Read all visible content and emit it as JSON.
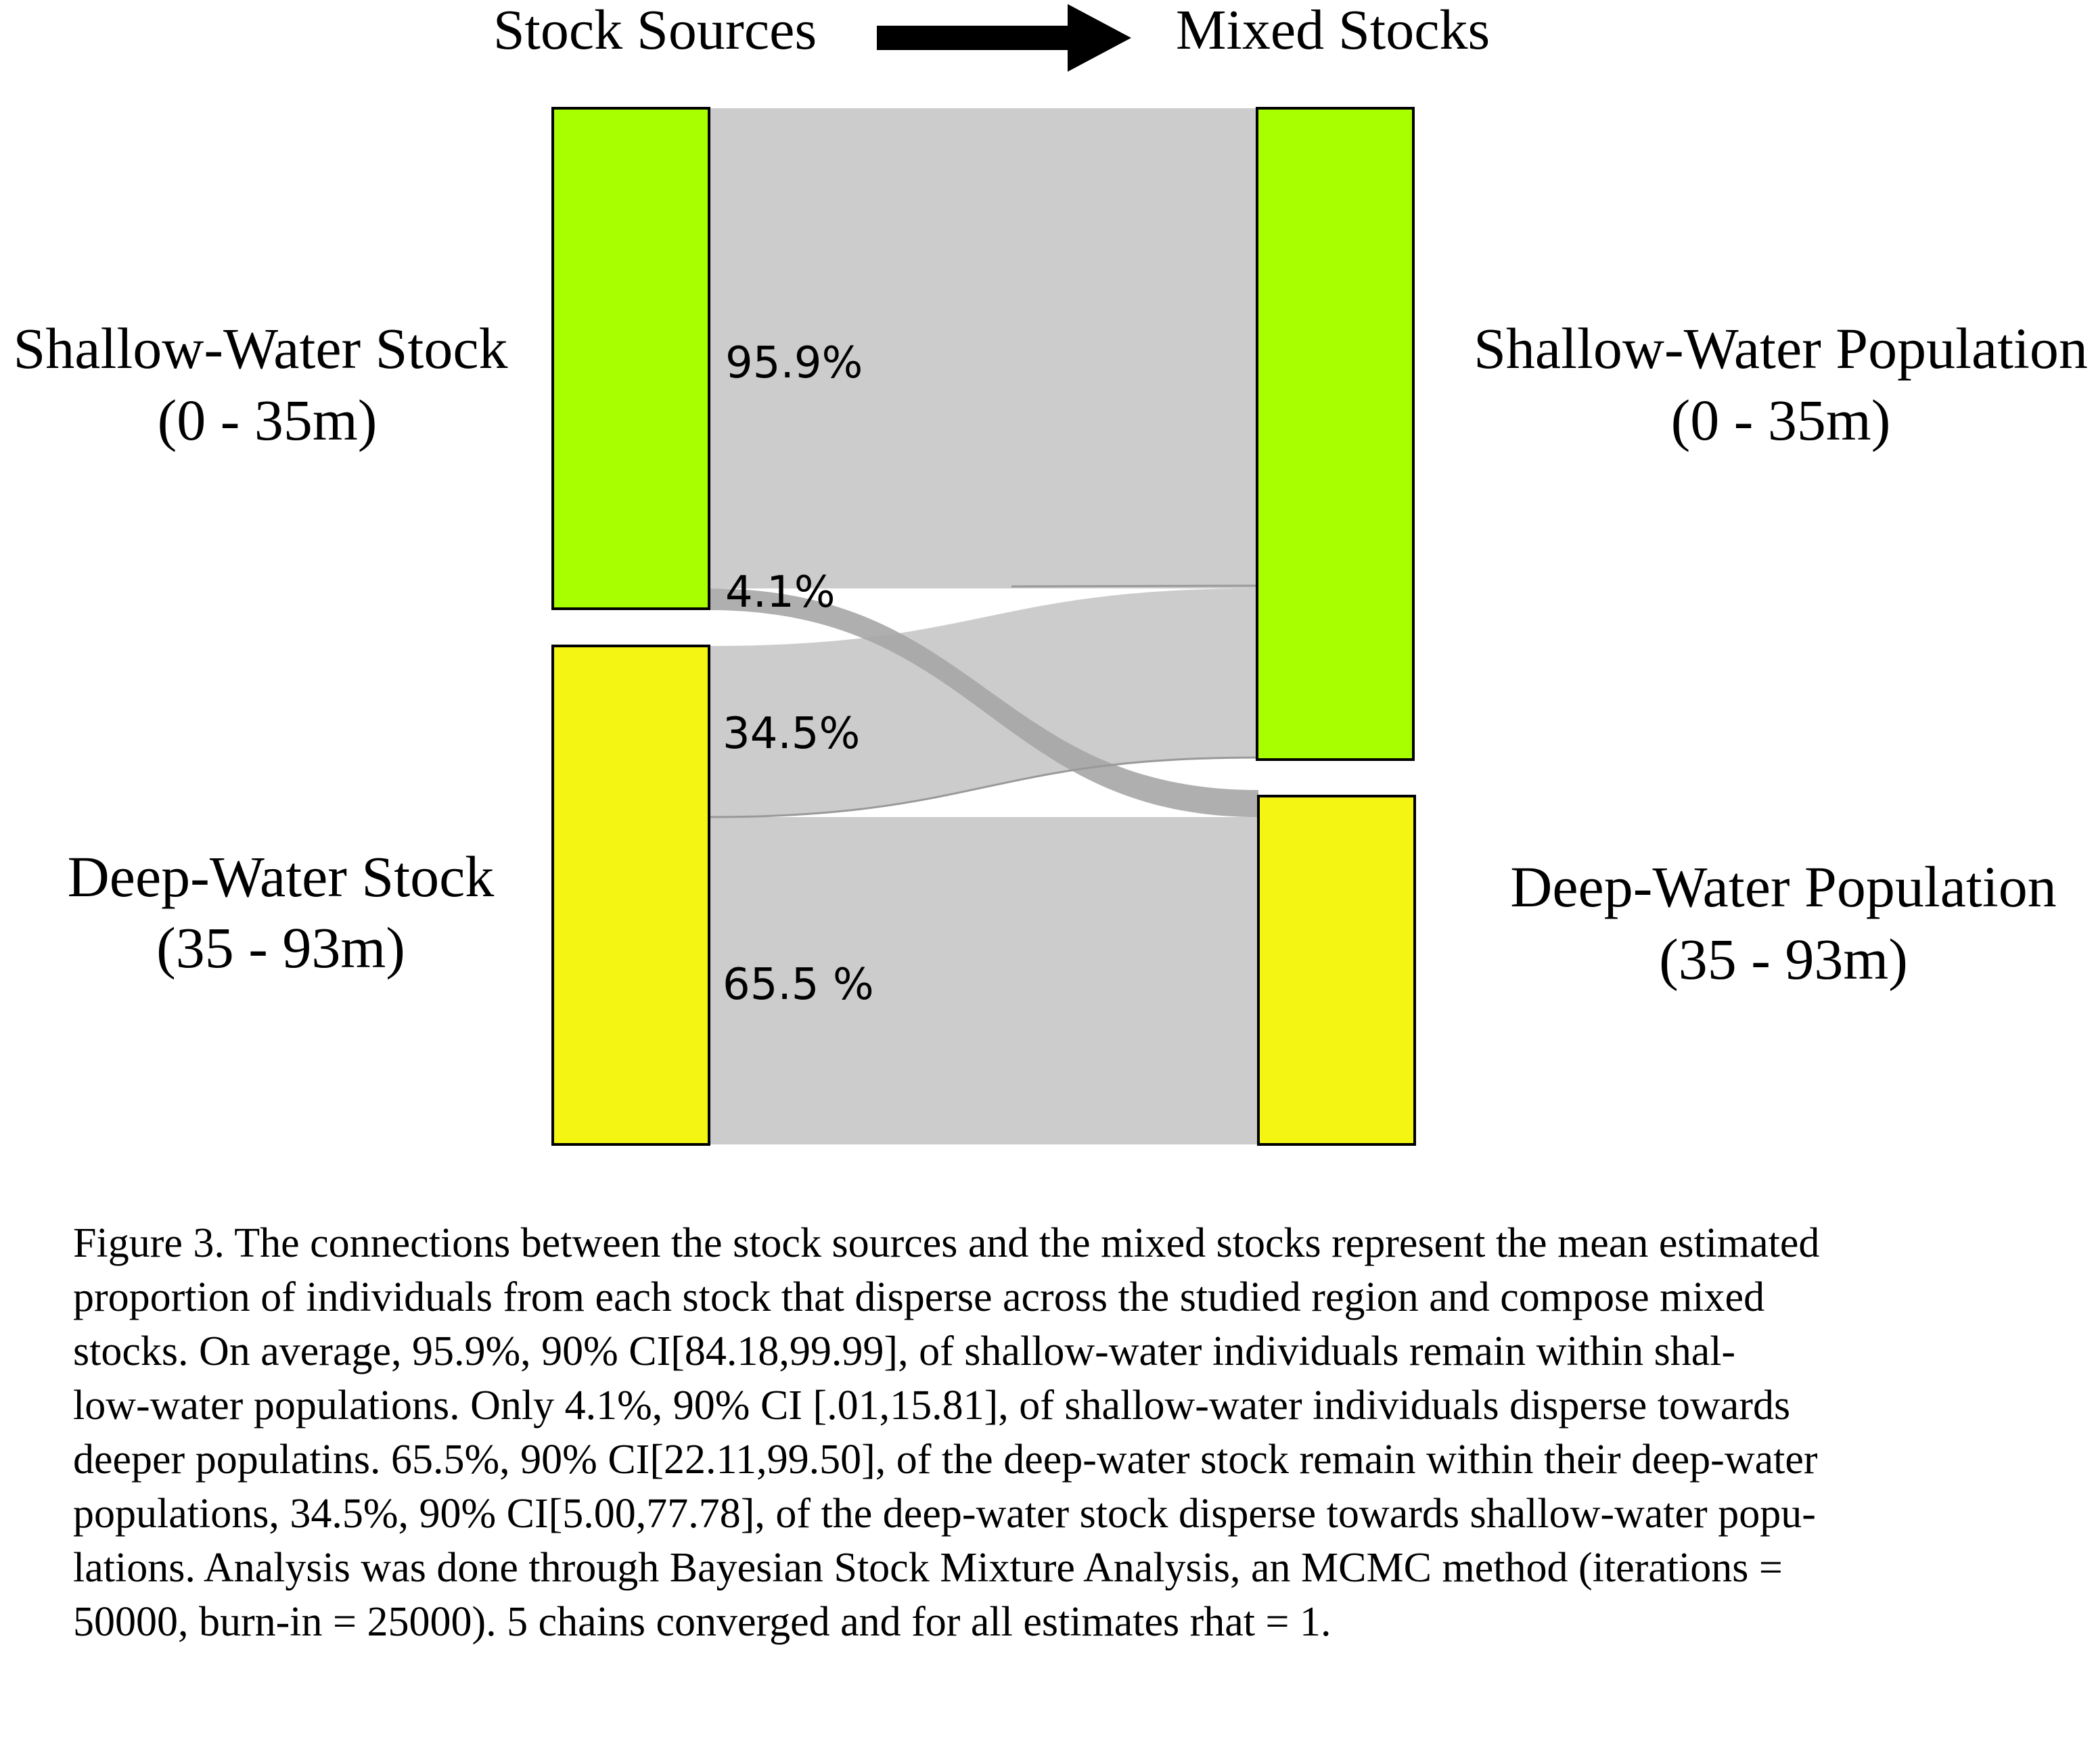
{
  "header": {
    "left": "Stock Sources",
    "right": "Mixed Stocks"
  },
  "colors": {
    "shallow": "#a8ff00",
    "deep": "#f5f514",
    "flow": "#cccccc",
    "flow_dark": "#a6a6a6",
    "outline": "#000000"
  },
  "sources": {
    "shallow": {
      "name": "Shallow-Water Stock",
      "range": "(0 - 35m)"
    },
    "deep": {
      "name": "Deep-Water Stock",
      "range": "(35 - 93m)"
    }
  },
  "targets": {
    "shallow": {
      "name": "Shallow-Water Population",
      "range": "(0 - 35m)"
    },
    "deep": {
      "name": "Deep-Water Population",
      "range": "(35 - 93m)"
    }
  },
  "flows": {
    "shallow_to_shallow": {
      "label": "95.9%",
      "value": 95.9
    },
    "shallow_to_deep": {
      "label": "4.1%",
      "value": 4.1
    },
    "deep_to_shallow": {
      "label": "34.5%",
      "value": 34.5
    },
    "deep_to_deep": {
      "label": "65.5 %",
      "value": 65.5
    }
  },
  "caption": {
    "lines": [
      "Figure 3. The connections between the stock sources and the mixed stocks represent the mean estimated",
      "proportion of individuals from each stock that disperse across the studied region and compose mixed",
      "stocks. On average, 95.9%, 90% CI[84.18,99.99], of shallow-water individuals remain within shal-",
      "low-water populations. Only 4.1%, 90% CI [.01,15.81], of shallow-water individuals disperse towards",
      "deeper populatins. 65.5%, 90% CI[22.11,99.50], of the deep-water stock remain within their deep-water",
      "populations, 34.5%, 90% CI[5.00,77.78], of the deep-water stock disperse towards shallow-water popu-",
      "lations. Analysis was done through Bayesian Stock Mixture Analysis, an MCMC method (iterations =",
      "50000, burn-in = 25000). 5 chains converged and for all estimates rhat = 1."
    ]
  }
}
